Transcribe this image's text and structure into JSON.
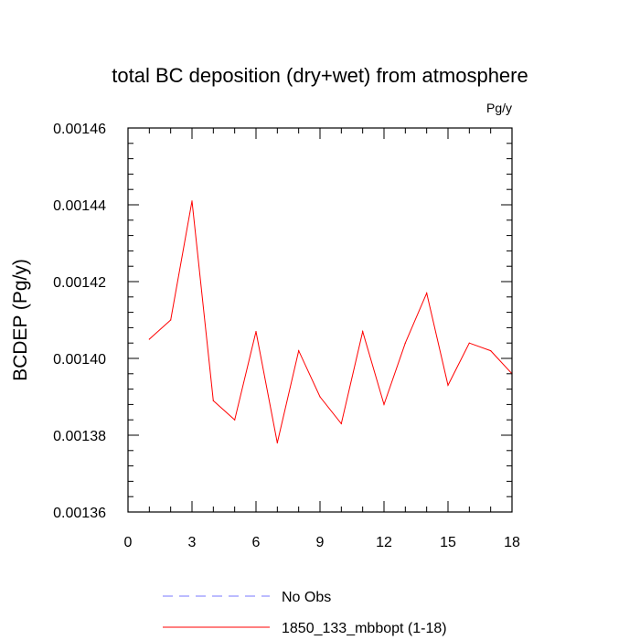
{
  "chart_data": {
    "type": "line",
    "title": "total BC deposition (dry+wet) from atmosphere",
    "units": "Pg/y",
    "ylabel": "BCDEP  (Pg/y)",
    "xlabel": "",
    "xlim": [
      0,
      18
    ],
    "ylim": [
      0.00136,
      0.00146
    ],
    "xticks": [
      "0",
      "3",
      "6",
      "9",
      "12",
      "15",
      "18"
    ],
    "yticks": [
      "0.00136",
      "0.00138",
      "0.00140",
      "0.00142",
      "0.00144",
      "0.00146"
    ],
    "grid": false,
    "legend_position": "bottom",
    "series": [
      {
        "name": "1850_133_mbbopt (1-18)",
        "color": "#ff0000",
        "style": "solid",
        "x": [
          1,
          2,
          3,
          4,
          5,
          6,
          7,
          8,
          9,
          10,
          11,
          12,
          13,
          14,
          15,
          16,
          17,
          18
        ],
        "values": [
          0.001405,
          0.00141,
          0.001441,
          0.001389,
          0.001384,
          0.001407,
          0.001378,
          0.001402,
          0.00139,
          0.001383,
          0.001407,
          0.001388,
          0.001404,
          0.001417,
          0.001393,
          0.001404,
          0.001402,
          0.001396
        ]
      }
    ],
    "legend": [
      {
        "name": "No Obs",
        "color": "#7777ff",
        "style": "dashed"
      },
      {
        "name": "1850_133_mbbopt (1-18)",
        "color": "#ff0000",
        "style": "solid"
      }
    ]
  }
}
